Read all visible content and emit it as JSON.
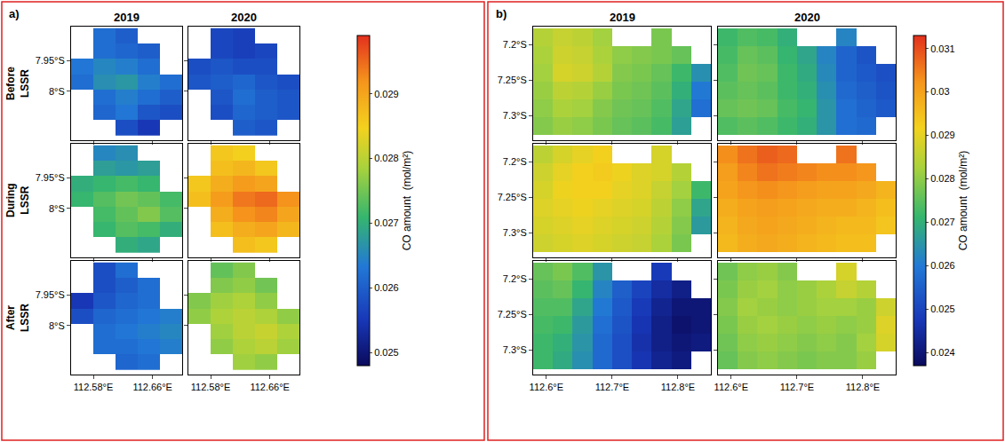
{
  "chart_data": [
    {
      "type": "heatmap",
      "panel_label": "a)",
      "columns": [
        "2019",
        "2020"
      ],
      "rows": [
        "Before LSSR",
        "During LSSR",
        "After LSSR"
      ],
      "x": [
        112.565,
        112.595,
        112.625,
        112.655,
        112.685
      ],
      "y": [
        -7.91,
        -7.935,
        -7.96,
        -7.985,
        -8.01,
        -8.035,
        -8.06
      ],
      "xlim": [
        112.55,
        112.7
      ],
      "ylim": [
        -8.08,
        -7.895
      ],
      "xticks": [
        {
          "value": 112.58,
          "label": "112.58°E"
        },
        {
          "value": 112.66,
          "label": "112.66°E"
        }
      ],
      "yticks": [
        {
          "value": -7.95,
          "label": "7.95°S"
        },
        {
          "value": -8,
          "label": "8°S"
        }
      ],
      "colorbar": {
        "title": "CO amount  (mol/m²)",
        "range": [
          0.0248,
          0.0299
        ],
        "ticks": [
          0.025,
          0.026,
          0.027,
          0.028,
          0.029
        ]
      },
      "maps": [
        [
          [
            [
              null,
              0.0262,
              0.026,
              null,
              null
            ],
            [
              null,
              0.0262,
              0.0261,
              0.026,
              null
            ],
            [
              0.0263,
              0.0265,
              0.0264,
              0.0262,
              null
            ],
            [
              0.0262,
              0.0266,
              0.0267,
              0.0264,
              0.0262
            ],
            [
              null,
              0.0262,
              0.0264,
              0.0262,
              0.026
            ],
            [
              null,
              0.0261,
              0.0263,
              0.0259,
              0.0258
            ],
            [
              null,
              null,
              0.0258,
              0.0255,
              null
            ]
          ],
          [
            [
              null,
              0.0257,
              0.0256,
              null,
              null
            ],
            [
              null,
              0.0257,
              0.0256,
              0.0257,
              null
            ],
            [
              0.0258,
              0.0259,
              0.0258,
              0.0258,
              null
            ],
            [
              0.0259,
              0.026,
              0.0261,
              0.0259,
              0.0258
            ],
            [
              null,
              0.0259,
              0.0262,
              0.026,
              0.0259
            ],
            [
              null,
              0.0258,
              0.0261,
              0.026,
              0.0259
            ],
            [
              null,
              null,
              0.026,
              0.0259,
              null
            ]
          ]
        ],
        [
          [
            [
              null,
              0.0265,
              0.0266,
              null,
              null
            ],
            [
              null,
              0.0268,
              0.0267,
              0.0268,
              null
            ],
            [
              0.027,
              0.0271,
              0.0272,
              0.0271,
              null
            ],
            [
              0.0271,
              0.0273,
              0.0275,
              0.0274,
              0.0272
            ],
            [
              null,
              0.0272,
              0.0274,
              0.0276,
              0.0273
            ],
            [
              null,
              0.0271,
              0.0273,
              0.0272,
              0.027
            ],
            [
              null,
              null,
              0.027,
              0.0269,
              null
            ]
          ],
          [
            [
              null,
              0.0286,
              0.0285,
              null,
              null
            ],
            [
              null,
              0.0287,
              0.0288,
              0.0286,
              null
            ],
            [
              0.0286,
              0.0289,
              0.0291,
              0.029,
              null
            ],
            [
              0.0287,
              0.0291,
              0.0294,
              0.0295,
              0.0292
            ],
            [
              null,
              0.0289,
              0.0292,
              0.0293,
              0.029
            ],
            [
              null,
              0.0287,
              0.0289,
              0.029,
              0.0288
            ],
            [
              null,
              null,
              0.0287,
              0.0286,
              null
            ]
          ]
        ],
        [
          [
            [
              null,
              0.0258,
              0.0262,
              null,
              null
            ],
            [
              null,
              0.0258,
              0.026,
              0.0262,
              null
            ],
            [
              0.0255,
              0.0259,
              0.0261,
              0.0262,
              null
            ],
            [
              0.0258,
              0.0261,
              0.0262,
              0.0263,
              0.0264
            ],
            [
              null,
              0.0262,
              0.0263,
              0.0264,
              0.0265
            ],
            [
              null,
              0.0262,
              0.0262,
              0.0263,
              0.0264
            ],
            [
              null,
              null,
              0.0261,
              0.0262,
              null
            ]
          ],
          [
            [
              null,
              0.0274,
              0.0276,
              null,
              null
            ],
            [
              null,
              0.0276,
              0.0277,
              0.0275,
              null
            ],
            [
              0.0276,
              0.0278,
              0.0279,
              0.0277,
              null
            ],
            [
              0.0277,
              0.0279,
              0.028,
              0.0279,
              0.0277
            ],
            [
              null,
              0.0278,
              0.028,
              0.0281,
              0.0279
            ],
            [
              null,
              0.0277,
              0.0279,
              0.028,
              0.0278
            ],
            [
              null,
              null,
              0.0278,
              0.0277,
              null
            ]
          ]
        ]
      ]
    },
    {
      "type": "heatmap",
      "panel_label": "b)",
      "columns": [
        "2019",
        "2020"
      ],
      "x": [
        112.595,
        112.625,
        112.655,
        112.685,
        112.715,
        112.745,
        112.775,
        112.805,
        112.835
      ],
      "y": [
        -7.19,
        -7.215,
        -7.24,
        -7.265,
        -7.29,
        -7.315
      ],
      "xlim": [
        112.58,
        112.85
      ],
      "ylim": [
        -7.335,
        -7.175
      ],
      "xticks": [
        {
          "value": 112.6,
          "label": "112.6°E"
        },
        {
          "value": 112.7,
          "label": "112.7°E"
        },
        {
          "value": 112.8,
          "label": "112.8°E"
        }
      ],
      "yticks": [
        {
          "value": -7.2,
          "label": "7.2°S"
        },
        {
          "value": -7.25,
          "label": "7.25°S"
        },
        {
          "value": -7.3,
          "label": "7.3°S"
        }
      ],
      "colorbar": {
        "title": "CO amount  (mol/m²)",
        "range": [
          0.0237,
          0.0313
        ],
        "ticks": [
          0.024,
          0.025,
          0.026,
          0.027,
          0.028,
          0.029,
          0.03,
          0.031
        ]
      },
      "maps": [
        [
          [
            [
              0.0284,
              0.0286,
              0.0285,
              0.0282,
              null,
              null,
              0.0278,
              null,
              null
            ],
            [
              0.0283,
              0.0287,
              0.0286,
              0.0283,
              0.028,
              0.0279,
              0.0278,
              0.0276,
              null
            ],
            [
              0.0282,
              0.0288,
              0.0287,
              0.0284,
              0.0279,
              0.0278,
              0.0276,
              0.0272,
              0.0264
            ],
            [
              0.0281,
              0.0285,
              0.0284,
              0.0281,
              0.0278,
              0.0277,
              0.0275,
              0.027,
              0.026
            ],
            [
              0.028,
              0.0283,
              0.0282,
              0.0279,
              0.0277,
              0.0276,
              0.0274,
              0.0268,
              0.0258
            ],
            [
              0.0279,
              0.0281,
              0.028,
              0.0278,
              0.0276,
              0.0275,
              0.0273,
              0.0267,
              null
            ]
          ],
          [
            [
              0.0272,
              0.0274,
              0.0273,
              0.027,
              null,
              null,
              0.0262,
              null,
              null
            ],
            [
              0.0273,
              0.0276,
              0.0275,
              0.0271,
              0.0268,
              0.0262,
              0.0256,
              0.0253,
              null
            ],
            [
              0.0274,
              0.0277,
              0.0276,
              0.0272,
              0.0269,
              0.0263,
              0.0256,
              0.0254,
              0.0252
            ],
            [
              0.0275,
              0.0276,
              0.0275,
              0.0272,
              0.027,
              0.0264,
              0.0257,
              0.0255,
              0.0253
            ],
            [
              0.0276,
              0.0277,
              0.0276,
              0.0273,
              0.0271,
              0.0265,
              0.0258,
              0.0256,
              0.0254
            ],
            [
              0.0274,
              0.0275,
              0.0274,
              0.0272,
              0.027,
              0.0265,
              0.0258,
              0.0257,
              null
            ]
          ]
        ],
        [
          [
            [
              0.0285,
              0.0288,
              0.029,
              0.0292,
              null,
              null,
              0.0288,
              null,
              null
            ],
            [
              0.0287,
              0.029,
              0.0292,
              0.0293,
              0.0291,
              0.0289,
              0.0288,
              0.0284,
              null
            ],
            [
              0.0288,
              0.0291,
              0.0292,
              0.0292,
              0.029,
              0.0289,
              0.0286,
              0.0282,
              0.0272
            ],
            [
              0.0289,
              0.029,
              0.0291,
              0.029,
              0.0289,
              0.0288,
              0.0285,
              0.028,
              0.0268
            ],
            [
              0.0288,
              0.0289,
              0.029,
              0.0289,
              0.0288,
              0.0287,
              0.0284,
              0.0279,
              0.0266
            ],
            [
              0.0287,
              0.0288,
              0.0289,
              0.0288,
              0.0287,
              0.0286,
              0.0283,
              0.0278,
              null
            ]
          ],
          [
            [
              0.0303,
              0.0306,
              0.0308,
              0.0307,
              null,
              null,
              0.0306,
              null,
              null
            ],
            [
              0.0301,
              0.0304,
              0.0306,
              0.0305,
              0.0304,
              0.0303,
              0.0303,
              0.0302,
              null
            ],
            [
              0.03,
              0.0302,
              0.0303,
              0.0302,
              0.0301,
              0.03,
              0.03,
              0.0299,
              0.0297
            ],
            [
              0.0298,
              0.03,
              0.0301,
              0.03,
              0.0299,
              0.0298,
              0.0298,
              0.0297,
              0.0295
            ],
            [
              0.0297,
              0.0299,
              0.03,
              0.0299,
              0.0298,
              0.0297,
              0.0296,
              0.0296,
              0.0294
            ],
            [
              0.0296,
              0.0298,
              0.0299,
              0.0298,
              0.0297,
              0.0296,
              0.0295,
              0.0295,
              null
            ]
          ]
        ],
        [
          [
            [
              0.0276,
              0.0278,
              0.0274,
              0.0265,
              null,
              null,
              0.0248,
              null,
              null
            ],
            [
              0.0275,
              0.0276,
              0.0271,
              0.0262,
              0.0255,
              0.025,
              0.0245,
              0.0242,
              null
            ],
            [
              0.0274,
              0.0274,
              0.0268,
              0.026,
              0.0254,
              0.0248,
              0.0243,
              0.024,
              0.024
            ],
            [
              0.0273,
              0.0272,
              0.0266,
              0.0258,
              0.0253,
              0.0247,
              0.0242,
              0.0239,
              0.024
            ],
            [
              0.0272,
              0.027,
              0.0265,
              0.0257,
              0.0252,
              0.0246,
              0.0242,
              0.024,
              0.0241
            ],
            [
              0.0272,
              0.0269,
              0.0264,
              0.0257,
              0.0252,
              0.0247,
              0.0243,
              0.0241,
              null
            ]
          ],
          [
            [
              0.0277,
              0.028,
              0.0281,
              0.0279,
              null,
              null,
              0.0288,
              null,
              null
            ],
            [
              0.0278,
              0.0281,
              0.0282,
              0.028,
              0.0281,
              0.0283,
              0.0286,
              0.0284,
              null
            ],
            [
              0.0279,
              0.0282,
              0.0281,
              0.028,
              0.0281,
              0.0282,
              0.0282,
              0.0281,
              0.0287
            ],
            [
              0.0278,
              0.0281,
              0.0282,
              0.0281,
              0.028,
              0.0281,
              0.028,
              0.0281,
              0.0289
            ],
            [
              0.0277,
              0.028,
              0.0281,
              0.028,
              0.0279,
              0.028,
              0.0279,
              0.0282,
              0.0288
            ],
            [
              0.0276,
              0.0279,
              0.028,
              0.0279,
              0.0278,
              0.0279,
              0.0279,
              0.0281,
              null
            ]
          ]
        ]
      ]
    }
  ]
}
